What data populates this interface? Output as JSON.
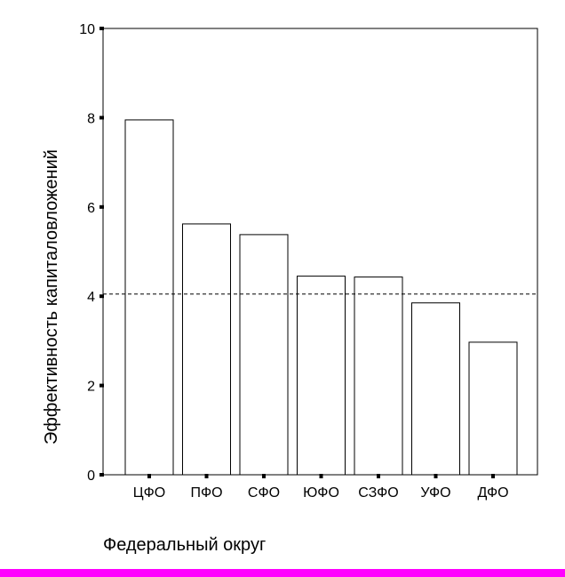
{
  "colors": {
    "background": "#ffffff",
    "bar_fill": "#ffffff",
    "bar_stroke": "#000000",
    "axis": "#000000",
    "reference_line": "#000000",
    "bottom_band": "#ff00ff"
  },
  "chart_data": {
    "type": "bar",
    "xlabel": "Федеральный округ",
    "ylabel": "Эффективность капиталовложений",
    "categories": [
      "ЦФО",
      "ПФО",
      "СФО",
      "ЮФО",
      "СЗФО",
      "УФО",
      "ДФО"
    ],
    "values": [
      7.95,
      5.62,
      5.38,
      4.45,
      4.43,
      3.85,
      2.97
    ],
    "ylim": [
      0,
      10
    ],
    "yticks": [
      "0",
      "2",
      "4",
      "6",
      "8",
      "10"
    ],
    "reference_line": {
      "value": 4.05,
      "style": "dashed"
    },
    "grid": false,
    "legend": "none"
  }
}
